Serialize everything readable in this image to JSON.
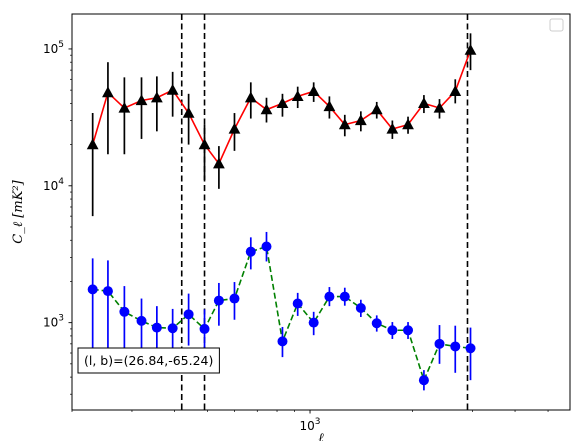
{
  "chart_data": {
    "type": "scatter",
    "xscale": "log",
    "yscale": "log",
    "xlim": [
      200,
      5800
    ],
    "ylim": [
      230,
      180000
    ],
    "xlabel": "ℓ",
    "ylabel": "C_ℓ  [mK²]",
    "x_tick_labels": [
      {
        "value": 1000,
        "base": "10",
        "exp": "3"
      }
    ],
    "y_tick_labels": [
      {
        "value": 1000,
        "base": "10",
        "exp": "3"
      },
      {
        "value": 10000,
        "base": "10",
        "exp": "4"
      },
      {
        "value": 100000,
        "base": "10",
        "exp": "5"
      }
    ],
    "grid": false,
    "legend": {
      "placement": "top-right",
      "entries": []
    },
    "annotation": {
      "text": "(l, b)=(26.84,-65.24)",
      "placement": "bottom-left"
    },
    "vlines": [
      420,
      490,
      2900
    ],
    "series": [
      {
        "marker": "triangle",
        "marker_color": "#000000",
        "line_color": "#ff0000",
        "line_style": "solid",
        "errorbar_color": "#000000",
        "points": [
          {
            "x": 230,
            "y": 20000,
            "lo": 6000,
            "hi": 34000
          },
          {
            "x": 255,
            "y": 48000,
            "lo": 17000,
            "hi": 80000
          },
          {
            "x": 285,
            "y": 37000,
            "lo": 17000,
            "hi": 62000
          },
          {
            "x": 320,
            "y": 42000,
            "lo": 22000,
            "hi": 62000
          },
          {
            "x": 355,
            "y": 44000,
            "lo": 25000,
            "hi": 63000
          },
          {
            "x": 395,
            "y": 50000,
            "lo": 32000,
            "hi": 68000
          },
          {
            "x": 440,
            "y": 34000,
            "lo": 20000,
            "hi": 47000
          },
          {
            "x": 490,
            "y": 20000,
            "lo": 11000,
            "hi": 28000
          },
          {
            "x": 540,
            "y": 14500,
            "lo": 9500,
            "hi": 19500
          },
          {
            "x": 600,
            "y": 26000,
            "lo": 18000,
            "hi": 34000
          },
          {
            "x": 670,
            "y": 44000,
            "lo": 31000,
            "hi": 57000
          },
          {
            "x": 745,
            "y": 36000,
            "lo": 29000,
            "hi": 44000
          },
          {
            "x": 830,
            "y": 40000,
            "lo": 32000,
            "hi": 47000
          },
          {
            "x": 920,
            "y": 45000,
            "lo": 37000,
            "hi": 53000
          },
          {
            "x": 1025,
            "y": 49000,
            "lo": 41000,
            "hi": 57000
          },
          {
            "x": 1140,
            "y": 38000,
            "lo": 31000,
            "hi": 45000
          },
          {
            "x": 1265,
            "y": 28000,
            "lo": 23000,
            "hi": 33000
          },
          {
            "x": 1410,
            "y": 30000,
            "lo": 25000,
            "hi": 35000
          },
          {
            "x": 1570,
            "y": 36000,
            "lo": 31000,
            "hi": 41000
          },
          {
            "x": 1745,
            "y": 26000,
            "lo": 22000,
            "hi": 30000
          },
          {
            "x": 1940,
            "y": 28000,
            "lo": 24000,
            "hi": 32000
          },
          {
            "x": 2160,
            "y": 40000,
            "lo": 34000,
            "hi": 46000
          },
          {
            "x": 2400,
            "y": 37000,
            "lo": 31000,
            "hi": 43000
          },
          {
            "x": 2670,
            "y": 49000,
            "lo": 40000,
            "hi": 60000
          },
          {
            "x": 2960,
            "y": 98000,
            "lo": 70000,
            "hi": 130000
          }
        ]
      },
      {
        "marker": "circle",
        "marker_color": "#0000ff",
        "line_color": "#008000",
        "line_style": "dashed",
        "errorbar_color": "#0000ff",
        "points": [
          {
            "x": 230,
            "y": 1750,
            "lo": 520,
            "hi": 2950
          },
          {
            "x": 255,
            "y": 1700,
            "lo": 560,
            "hi": 2850
          },
          {
            "x": 285,
            "y": 1200,
            "lo": 500,
            "hi": 1850
          },
          {
            "x": 320,
            "y": 1030,
            "lo": 540,
            "hi": 1500
          },
          {
            "x": 355,
            "y": 920,
            "lo": 520,
            "hi": 1320
          },
          {
            "x": 395,
            "y": 910,
            "lo": 560,
            "hi": 1260
          },
          {
            "x": 440,
            "y": 1150,
            "lo": 680,
            "hi": 1630
          },
          {
            "x": 490,
            "y": 900,
            "lo": 560,
            "hi": 1250
          },
          {
            "x": 540,
            "y": 1450,
            "lo": 950,
            "hi": 1950
          },
          {
            "x": 600,
            "y": 1500,
            "lo": 1050,
            "hi": 1980
          },
          {
            "x": 670,
            "y": 3300,
            "lo": 2450,
            "hi": 4200
          },
          {
            "x": 745,
            "y": 3600,
            "lo": 2800,
            "hi": 4600
          },
          {
            "x": 830,
            "y": 730,
            "lo": 560,
            "hi": 930
          },
          {
            "x": 920,
            "y": 1380,
            "lo": 1120,
            "hi": 1650
          },
          {
            "x": 1025,
            "y": 1000,
            "lo": 810,
            "hi": 1200
          },
          {
            "x": 1140,
            "y": 1550,
            "lo": 1320,
            "hi": 1820
          },
          {
            "x": 1265,
            "y": 1550,
            "lo": 1330,
            "hi": 1800
          },
          {
            "x": 1410,
            "y": 1280,
            "lo": 1100,
            "hi": 1470
          },
          {
            "x": 1570,
            "y": 990,
            "lo": 860,
            "hi": 1130
          },
          {
            "x": 1745,
            "y": 880,
            "lo": 760,
            "hi": 1010
          },
          {
            "x": 1940,
            "y": 880,
            "lo": 760,
            "hi": 1010
          },
          {
            "x": 2160,
            "y": 380,
            "lo": 320,
            "hi": 450
          },
          {
            "x": 2400,
            "y": 700,
            "lo": 500,
            "hi": 960
          },
          {
            "x": 2670,
            "y": 670,
            "lo": 430,
            "hi": 950
          },
          {
            "x": 2960,
            "y": 650,
            "lo": 380,
            "hi": 920
          }
        ]
      }
    ]
  }
}
